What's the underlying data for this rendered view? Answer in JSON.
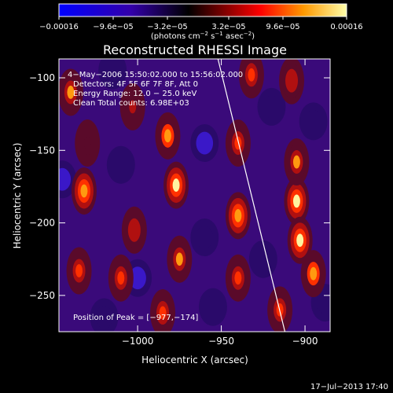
{
  "chart_data": {
    "type": "heatmap",
    "title": "Reconstructed RHESSI Image",
    "xlabel": "Heliocentric X (arcsec)",
    "ylabel": "Heliocentric Y (arcsec)",
    "xlim": [
      -1047,
      -885
    ],
    "ylim": [
      -275,
      -87
    ],
    "x_ticks": [
      -1000,
      -950,
      -900
    ],
    "x_tick_labels": [
      "−1000",
      "−950",
      "−900"
    ],
    "y_ticks": [
      -250,
      -200,
      -150,
      -100
    ],
    "y_tick_labels": [
      "−250",
      "−200",
      "−150",
      "−100"
    ],
    "colorbar": {
      "range": [
        -0.00016,
        0.00016
      ],
      "tick_labels": [
        "−0.00016",
        "−9.6e−05",
        "−3.2e−05",
        "3.2e−05",
        "9.6e−05",
        "0.00016"
      ],
      "units_label": "(photons cm",
      "units_exp1": "−2",
      "units_mid": " s",
      "units_exp2": "−1",
      "units_mid2": " asec",
      "units_exp3": "−2",
      "units_end": ")"
    },
    "annotations": [
      "4−May−2006 15:50:02.000 to 15:56:02.000",
      "Detectors: 4F 5F 6F 7F 8F, Att 0",
      "Energy Range: 12.0 − 25.0 keV",
      "Clean    Total counts: 6.98E+03"
    ],
    "peak_label": "Position of Peak = [−977,−174]",
    "peak_position": [
      -977,
      -174
    ],
    "limb_line": [
      [
        -952,
        -87
      ],
      [
        -912,
        -275
      ]
    ],
    "bright_sources": [
      {
        "x": -1032,
        "y": -178,
        "v": 0.9
      },
      {
        "x": -1040,
        "y": -110,
        "v": 0.8
      },
      {
        "x": -1035,
        "y": -233,
        "v": 0.6
      },
      {
        "x": -977,
        "y": -174,
        "v": 1.0
      },
      {
        "x": -982,
        "y": -140,
        "v": 0.85
      },
      {
        "x": -975,
        "y": -225,
        "v": 0.75
      },
      {
        "x": -985,
        "y": -262,
        "v": 0.7
      },
      {
        "x": -1010,
        "y": -238,
        "v": 0.6
      },
      {
        "x": -940,
        "y": -195,
        "v": 0.9
      },
      {
        "x": -940,
        "y": -238,
        "v": 0.6
      },
      {
        "x": -940,
        "y": -145,
        "v": 0.6
      },
      {
        "x": -932,
        "y": -98,
        "v": 0.7
      },
      {
        "x": -905,
        "y": -185,
        "v": 1.0
      },
      {
        "x": -905,
        "y": -158,
        "v": 0.8
      },
      {
        "x": -903,
        "y": -212,
        "v": 0.95
      },
      {
        "x": -915,
        "y": -260,
        "v": 0.6
      },
      {
        "x": -895,
        "y": -235,
        "v": 0.85
      },
      {
        "x": -908,
        "y": -102,
        "v": 0.5
      },
      {
        "x": -1003,
        "y": -120,
        "v": 0.4
      },
      {
        "x": -1002,
        "y": -205,
        "v": 0.5
      },
      {
        "x": -1030,
        "y": -145,
        "v": 0.3
      }
    ],
    "dark_sources": [
      {
        "x": -1045,
        "y": -170,
        "v": -0.8
      },
      {
        "x": -1000,
        "y": -238,
        "v": -0.7
      },
      {
        "x": -1010,
        "y": -160,
        "v": -0.6
      },
      {
        "x": -960,
        "y": -145,
        "v": -0.7
      },
      {
        "x": -960,
        "y": -210,
        "v": -0.5
      },
      {
        "x": -955,
        "y": -258,
        "v": -0.6
      },
      {
        "x": -925,
        "y": -225,
        "v": -0.6
      },
      {
        "x": -920,
        "y": -120,
        "v": -0.6
      },
      {
        "x": -895,
        "y": -130,
        "v": -0.5
      },
      {
        "x": -1015,
        "y": -95,
        "v": -0.5
      },
      {
        "x": -1020,
        "y": -265,
        "v": -0.5
      },
      {
        "x": -888,
        "y": -255,
        "v": -0.6
      }
    ]
  },
  "footer": {
    "timestamp": "17−Jul−2013 17:40"
  }
}
